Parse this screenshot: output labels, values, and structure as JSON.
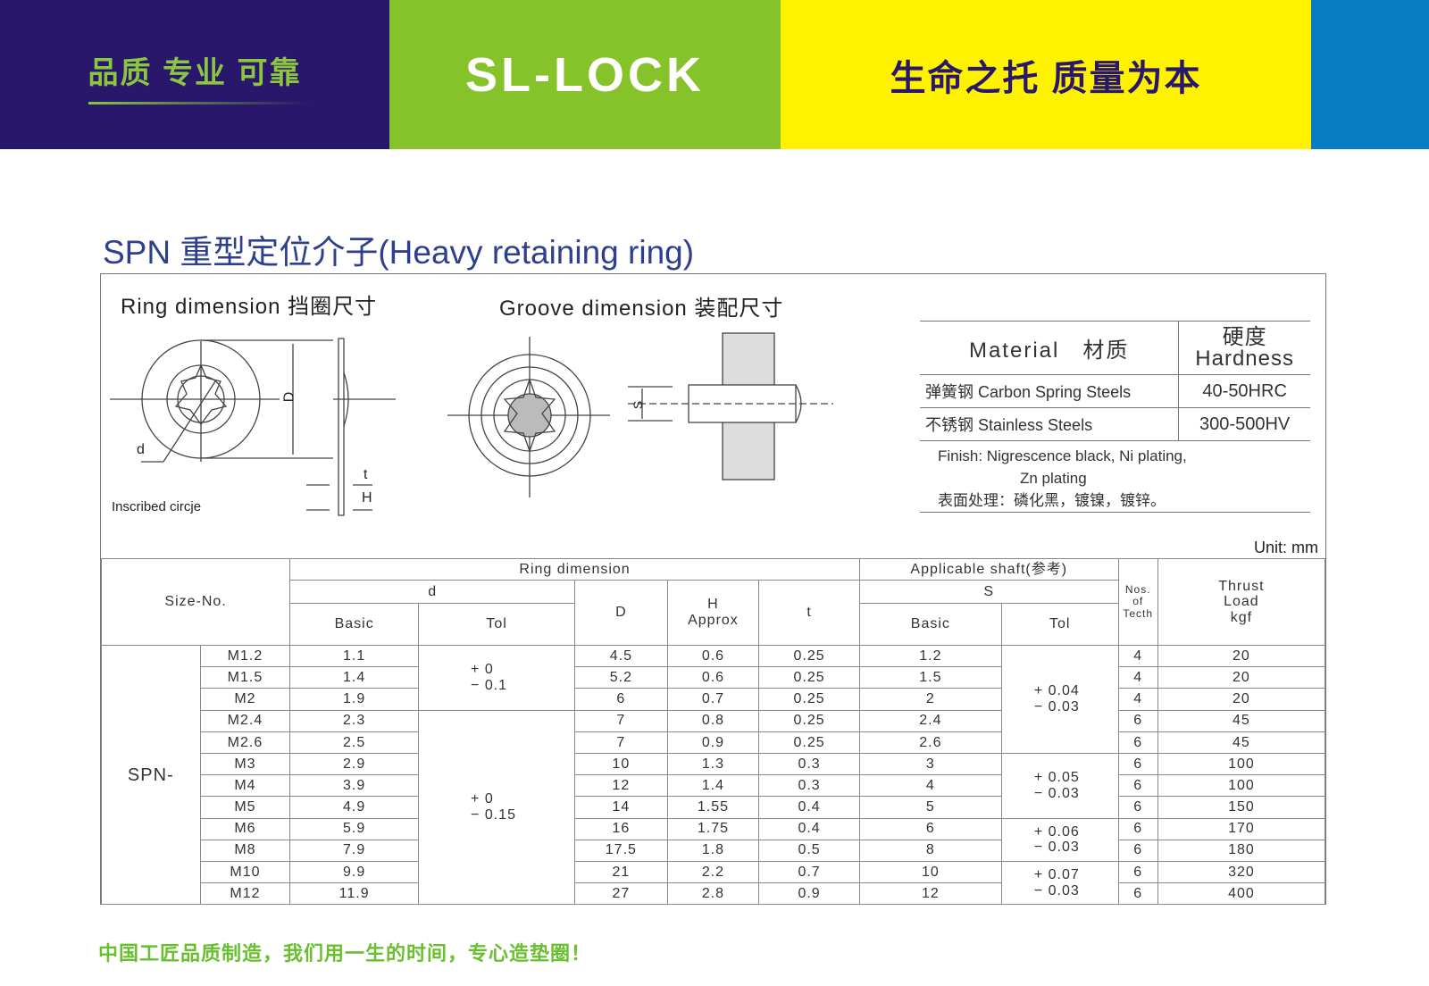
{
  "header": {
    "slogan_left": "品质 专业 可靠",
    "logo": "SL-LOCK",
    "slogan_right": "生命之托 质量为本",
    "colors": {
      "navy": "#29176b",
      "green": "#86c22a",
      "yellow": "#fff200",
      "blue": "#0a7cc4"
    }
  },
  "title": "SPN 重型定位介子(Heavy retaining ring)",
  "drawings": {
    "ring_label": "Ring dimension 挡圈尺寸",
    "groove_label": "Groove dimension 装配尺寸",
    "d": "d",
    "D": "D",
    "t": "t",
    "H": "H",
    "S": "S",
    "inscribed": "Inscribed circje"
  },
  "material": {
    "header_material": "Material　材质",
    "header_hardness_cn": "硬度",
    "header_hardness": "Hardness",
    "rows": [
      {
        "name": "弹簧钢 Carbon Spring Steels",
        "hardness": "40-50HRC"
      },
      {
        "name": "不锈钢 Stainless Steels",
        "hardness": "300-500HV"
      }
    ],
    "finish_1": "Finish: Nigrescence black, Ni plating,",
    "finish_2": "Zn plating",
    "finish_cn": "表面处理：磷化黑，镀镍，镀锌。"
  },
  "unit": "Unit: mm",
  "table": {
    "h_size": "Size-No.",
    "h_ring": "Ring dimension",
    "h_d": "d",
    "h_basic": "Basic",
    "h_tol": "Tol",
    "h_D": "D",
    "h_H": "H\nApprox",
    "h_t": "t",
    "h_shaft": "Applicable shaft(参考)",
    "h_S": "S",
    "h_sbasic": "Basic",
    "h_stol": "Tol",
    "h_nos": "Nos.\nof\nTecth",
    "h_thrust": "Thrust\nLoad\nkgf",
    "series": "SPN-",
    "rows": [
      [
        "M1.2",
        "1.1",
        "4.5",
        "0.6",
        "0.25",
        "1.2",
        "4",
        "20"
      ],
      [
        "M1.5",
        "1.4",
        "5.2",
        "0.6",
        "0.25",
        "1.5",
        "4",
        "20"
      ],
      [
        "M2",
        "1.9",
        "6",
        "0.7",
        "0.25",
        "2",
        "4",
        "20"
      ],
      [
        "M2.4",
        "2.3",
        "7",
        "0.8",
        "0.25",
        "2.4",
        "6",
        "45"
      ],
      [
        "M2.6",
        "2.5",
        "7",
        "0.9",
        "0.25",
        "2.6",
        "6",
        "45"
      ],
      [
        "M3",
        "2.9",
        "10",
        "1.3",
        "0.3",
        "3",
        "6",
        "100"
      ],
      [
        "M4",
        "3.9",
        "12",
        "1.4",
        "0.3",
        "4",
        "6",
        "100"
      ],
      [
        "M5",
        "4.9",
        "14",
        "1.55",
        "0.4",
        "5",
        "6",
        "150"
      ],
      [
        "M6",
        "5.9",
        "16",
        "1.75",
        "0.4",
        "6",
        "6",
        "170"
      ],
      [
        "M8",
        "7.9",
        "17.5",
        "1.8",
        "0.5",
        "8",
        "6",
        "180"
      ],
      [
        "M10",
        "9.9",
        "21",
        "2.2",
        "0.7",
        "10",
        "6",
        "320"
      ],
      [
        "M12",
        "11.9",
        "27",
        "2.8",
        "0.9",
        "12",
        "6",
        "400"
      ]
    ],
    "d_tol": [
      {
        "start": 0,
        "span": 3,
        "text": "+ 0\n− 0.1"
      },
      {
        "start": 3,
        "span": 9,
        "text": "+ 0\n− 0.15"
      }
    ],
    "s_tol": [
      {
        "start": 0,
        "span": 5,
        "text": "+ 0.04\n− 0.03"
      },
      {
        "start": 5,
        "span": 3,
        "text": "+ 0.05\n− 0.03"
      },
      {
        "start": 8,
        "span": 2,
        "text": "+ 0.06\n− 0.03"
      },
      {
        "start": 10,
        "span": 2,
        "text": "+ 0.07\n− 0.03"
      }
    ]
  },
  "footer": "中国工匠品质制造，我们用一生的时间，专心造垫圈！"
}
